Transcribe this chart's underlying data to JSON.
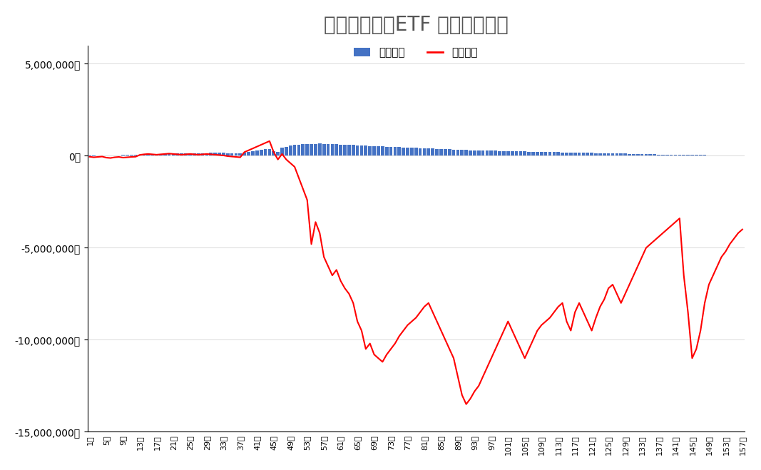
{
  "title": "トライオートETF 週別運用実績",
  "legend_realized": "実現損益",
  "legend_eval": "評価損益",
  "bar_color": "#4472c4",
  "line_color": "#ff0000",
  "ylim": [
    -15000000,
    6000000
  ],
  "yticks": [
    -15000000,
    -10000000,
    -5000000,
    0,
    5000000
  ],
  "ytick_labels": [
    "-15,000,000円",
    "-10,000,000円",
    "-5,000,000円",
    "0円",
    "5,000,000円"
  ],
  "num_weeks": 157,
  "background_color": "#ffffff",
  "grid_color": "#cccccc",
  "realized_pnl": [
    -5000,
    -3000,
    5000,
    8000,
    10000,
    15000,
    20000,
    30000,
    40000,
    50000,
    55000,
    60000,
    70000,
    75000,
    80000,
    85000,
    90000,
    95000,
    100000,
    105000,
    110000,
    115000,
    120000,
    125000,
    130000,
    135000,
    140000,
    145000,
    150000,
    155000,
    160000,
    160000,
    155000,
    150000,
    145000,
    140000,
    130000,
    180000,
    200000,
    250000,
    300000,
    320000,
    350000,
    370000,
    250000,
    200000,
    450000,
    500000,
    550000,
    580000,
    600000,
    620000,
    630000,
    640000,
    650000,
    660000,
    650000,
    640000,
    630000,
    620000,
    610000,
    600000,
    590000,
    580000,
    570000,
    560000,
    550000,
    540000,
    530000,
    520000,
    510000,
    500000,
    490000,
    480000,
    470000,
    460000,
    450000,
    440000,
    430000,
    420000,
    410000,
    400000,
    390000,
    380000,
    370000,
    360000,
    350000,
    340000,
    330000,
    320000,
    310000,
    300000,
    295000,
    290000,
    285000,
    280000,
    275000,
    270000,
    265000,
    260000,
    255000,
    250000,
    245000,
    240000,
    235000,
    230000,
    225000,
    220000,
    215000,
    210000,
    205000,
    200000,
    195000,
    190000,
    185000,
    180000,
    175000,
    170000,
    165000,
    160000,
    155000,
    150000,
    145000,
    140000,
    135000,
    130000,
    125000,
    120000,
    115000,
    110000,
    105000,
    100000,
    95000,
    90000,
    85000,
    80000,
    75000,
    70000,
    65000,
    60000,
    55000,
    50000,
    48000,
    46000,
    44000,
    42000,
    40000,
    38000,
    36000,
    34000,
    32000,
    30000,
    28000,
    26000,
    24000,
    22000,
    20000
  ],
  "eval_pnl": [
    -50000,
    -80000,
    -60000,
    -40000,
    -100000,
    -120000,
    -80000,
    -60000,
    -100000,
    -80000,
    -60000,
    -50000,
    50000,
    80000,
    100000,
    80000,
    60000,
    80000,
    100000,
    120000,
    100000,
    80000,
    60000,
    80000,
    100000,
    80000,
    60000,
    80000,
    100000,
    80000,
    60000,
    40000,
    20000,
    -20000,
    -40000,
    -60000,
    -80000,
    200000,
    300000,
    400000,
    500000,
    600000,
    700000,
    800000,
    200000,
    -200000,
    100000,
    -200000,
    -400000,
    -600000,
    -1200000,
    -1800000,
    -2400000,
    -4800000,
    -3600000,
    -4200000,
    -5500000,
    -6000000,
    -6500000,
    -6200000,
    -6800000,
    -7200000,
    -7500000,
    -8000000,
    -9000000,
    -9500000,
    -10500000,
    -10200000,
    -10800000,
    -11000000,
    -11200000,
    -10800000,
    -10500000,
    -10200000,
    -9800000,
    -9500000,
    -9200000,
    -9000000,
    -8800000,
    -8500000,
    -8200000,
    -8000000,
    -8500000,
    -9000000,
    -9500000,
    -10000000,
    -10500000,
    -11000000,
    -12000000,
    -13000000,
    -13500000,
    -13200000,
    -12800000,
    -12500000,
    -12000000,
    -11500000,
    -11000000,
    -10500000,
    -10000000,
    -9500000,
    -9000000,
    -9500000,
    -10000000,
    -10500000,
    -11000000,
    -10500000,
    -10000000,
    -9500000,
    -9200000,
    -9000000,
    -8800000,
    -8500000,
    -8200000,
    -8000000,
    -9000000,
    -9500000,
    -8500000,
    -8000000,
    -8500000,
    -9000000,
    -9500000,
    -8800000,
    -8200000,
    -7800000,
    -7200000,
    -7000000,
    -7500000,
    -8000000,
    -7500000,
    -7000000,
    -6500000,
    -6000000,
    -5500000,
    -5000000,
    -4800000,
    -4600000,
    -4400000,
    -4200000,
    -4000000,
    -3800000,
    -3600000,
    -3400000,
    -6500000,
    -8500000,
    -11000000,
    -10500000,
    -9500000,
    -8000000,
    -7000000,
    -6500000,
    -6000000,
    -5500000,
    -5200000,
    -4800000,
    -4500000,
    -4200000,
    -4000000
  ]
}
